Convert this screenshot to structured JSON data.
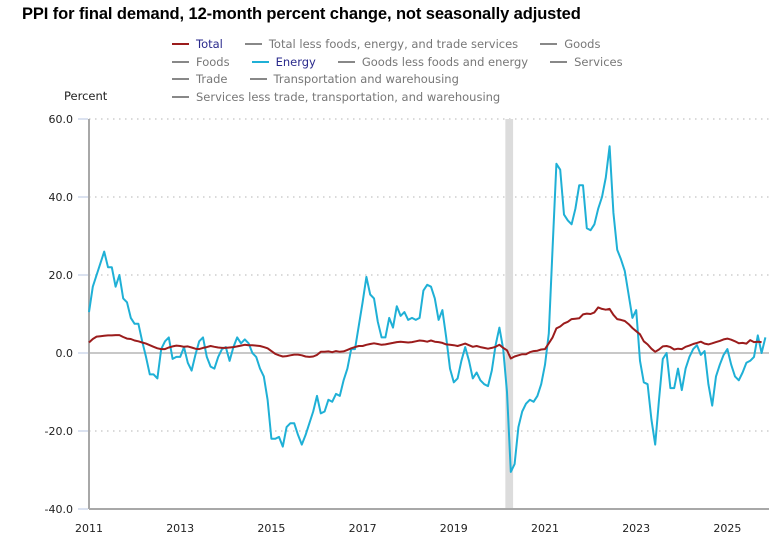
{
  "chart_data": {
    "type": "line",
    "title": "PPI for final demand, 12-month percent change, not seasonally adjusted",
    "xlabel": "",
    "ylabel": "Percent",
    "ylim": [
      -40,
      60
    ],
    "yticks": [
      "60.0",
      "40.0",
      "20.0",
      "0.0",
      "-20.0",
      "-40.0"
    ],
    "ytick_values": [
      60,
      40,
      20,
      0,
      -20,
      -40
    ],
    "xticks": [
      "2011",
      "2013",
      "2015",
      "2017",
      "2019",
      "2021",
      "2023",
      "2025"
    ],
    "xtick_values": [
      2011,
      2013,
      2015,
      2017,
      2019,
      2021,
      2023,
      2025
    ],
    "xlim": [
      2011.0,
      2025.9
    ],
    "grid": "horizontal dotted",
    "legend_position": "top",
    "recession_shading": [
      {
        "start": 2020.13,
        "end": 2020.3
      }
    ],
    "x_start": "2011-01",
    "x_frequency": "monthly",
    "legend": [
      {
        "name": "Total",
        "color": "#9b1c1c",
        "active": true
      },
      {
        "name": "Total less foods, energy, and trade services",
        "color": "#888888",
        "active": false
      },
      {
        "name": "Goods",
        "color": "#888888",
        "active": false
      },
      {
        "name": "Foods",
        "color": "#888888",
        "active": false
      },
      {
        "name": "Energy",
        "color": "#1fb0d6",
        "active": true
      },
      {
        "name": "Goods less foods and energy",
        "color": "#888888",
        "active": false
      },
      {
        "name": "Services",
        "color": "#888888",
        "active": false
      },
      {
        "name": "Trade",
        "color": "#888888",
        "active": false
      },
      {
        "name": "Transportation and warehousing",
        "color": "#888888",
        "active": false
      },
      {
        "name": "Services less trade, transportation, and warehousing",
        "color": "#888888",
        "active": false
      }
    ],
    "legend_rows": [
      [
        0,
        1,
        2
      ],
      [
        3,
        4,
        5,
        6
      ],
      [
        7,
        8
      ],
      [
        9
      ]
    ],
    "series": [
      {
        "name": "Total",
        "color": "#9b1c1c",
        "values": [
          2.7,
          3.6,
          4.2,
          4.3,
          4.4,
          4.5,
          4.5,
          4.6,
          4.6,
          4.1,
          3.7,
          3.6,
          3.2,
          3.0,
          2.7,
          2.4,
          2.0,
          1.6,
          1.2,
          1.0,
          1.0,
          1.4,
          1.7,
          1.9,
          1.8,
          1.6,
          1.7,
          1.4,
          1.1,
          1.0,
          1.3,
          1.5,
          1.8,
          1.6,
          1.4,
          1.3,
          1.3,
          1.4,
          1.5,
          1.7,
          1.9,
          2.1,
          2.0,
          2.0,
          1.9,
          1.8,
          1.5,
          1.2,
          0.5,
          -0.2,
          -0.6,
          -0.9,
          -0.8,
          -0.6,
          -0.4,
          -0.4,
          -0.6,
          -0.9,
          -1.0,
          -0.9,
          -0.5,
          0.3,
          0.3,
          0.4,
          0.2,
          0.5,
          0.3,
          0.4,
          0.8,
          1.2,
          1.5,
          1.8,
          1.8,
          2.1,
          2.3,
          2.5,
          2.3,
          2.1,
          2.2,
          2.4,
          2.6,
          2.8,
          2.9,
          2.8,
          2.7,
          2.8,
          3.0,
          3.2,
          3.1,
          2.9,
          3.2,
          2.9,
          2.8,
          2.6,
          2.2,
          2.1,
          2.0,
          1.8,
          2.1,
          2.4,
          2.0,
          1.6,
          1.8,
          1.5,
          1.3,
          1.1,
          1.3,
          1.6,
          2.1,
          1.3,
          0.7,
          -1.4,
          -0.9,
          -0.6,
          -0.3,
          -0.3,
          0.2,
          0.5,
          0.6,
          0.9,
          1.0,
          2.5,
          4.0,
          6.3,
          6.8,
          7.6,
          8.0,
          8.7,
          8.8,
          8.9,
          9.9,
          10.1,
          10.0,
          10.4,
          11.7,
          11.3,
          11.1,
          11.3,
          9.8,
          8.7,
          8.5,
          8.2,
          7.4,
          6.4,
          5.6,
          4.8,
          3.0,
          2.2,
          1.1,
          0.3,
          0.9,
          1.7,
          1.8,
          1.5,
          0.9,
          1.1,
          1.0,
          1.6,
          1.9,
          2.3,
          2.6,
          2.9,
          2.4,
          2.2,
          2.5,
          2.8,
          3.1,
          3.5,
          3.7,
          3.4,
          3.0,
          2.5,
          2.6,
          2.4,
          3.3,
          2.8,
          2.9,
          2.8
        ]
      },
      {
        "name": "Energy",
        "color": "#1fb0d6",
        "values": [
          10.5,
          17,
          20,
          23,
          26,
          22,
          22,
          17,
          20,
          14,
          13,
          9,
          7.5,
          7.5,
          3,
          -1,
          -5.5,
          -5.5,
          -6.5,
          1,
          3,
          4,
          -1.5,
          -1,
          -1,
          1.5,
          -2.5,
          -4.5,
          -0.5,
          3,
          4,
          -1,
          -3.5,
          -4,
          -1,
          1,
          1.5,
          -2,
          1.5,
          4,
          2.5,
          3.5,
          2.5,
          0,
          -1,
          -4,
          -6,
          -12,
          -22,
          -22,
          -21.5,
          -24,
          -19,
          -18,
          -18,
          -21,
          -23.5,
          -21,
          -18,
          -15,
          -11,
          -15.5,
          -15,
          -12,
          -12.5,
          -10.5,
          -11,
          -7,
          -4,
          1,
          1,
          7,
          13,
          19.5,
          15,
          14,
          8,
          4,
          4,
          9,
          6.5,
          12,
          9.5,
          10.5,
          8.5,
          9,
          8.5,
          9,
          16,
          17.5,
          17,
          14,
          8.5,
          11,
          4,
          -4,
          -7.5,
          -6.5,
          -2,
          1.5,
          -2,
          -6.5,
          -5,
          -7,
          -8,
          -8.5,
          -4.5,
          2,
          6.5,
          1,
          -10,
          -30.5,
          -28.5,
          -19,
          -15,
          -13,
          -12,
          -12.5,
          -11,
          -8,
          -3,
          5,
          27,
          48.5,
          47,
          35.5,
          34,
          33,
          37,
          43,
          43,
          32,
          31.5,
          33,
          37,
          40,
          45,
          53,
          36,
          26.5,
          24,
          21,
          15,
          9,
          11,
          -2,
          -7.5,
          -8,
          -17,
          -23.5,
          -12,
          -1.5,
          0,
          -9,
          -9,
          -4,
          -9.5,
          -4,
          -1,
          1,
          2,
          -0.5,
          0.5,
          -8,
          -13.5,
          -6,
          -3,
          -0.5,
          1,
          -3,
          -6,
          -7,
          -5,
          -2.5,
          -2,
          -1,
          4.5,
          0,
          4
        ]
      }
    ]
  }
}
